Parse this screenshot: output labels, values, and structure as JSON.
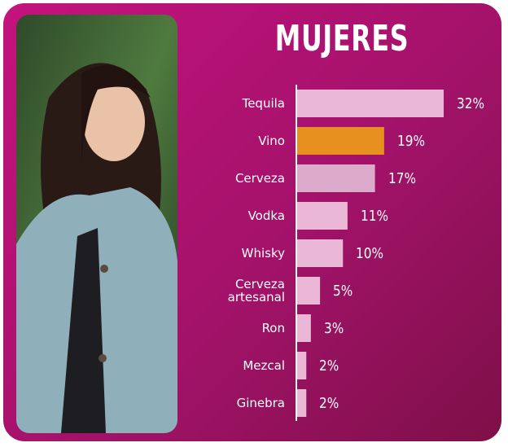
{
  "chart_data": {
    "type": "bar",
    "orientation": "horizontal",
    "title": "MUJERES",
    "categories": [
      "Tequila",
      "Vino",
      "Cerveza",
      "Vodka",
      "Whisky",
      "Cerveza artesanal",
      "Ron",
      "Mezcal",
      "Ginebra"
    ],
    "values": [
      32,
      19,
      17,
      11,
      10,
      5,
      3,
      2,
      2
    ],
    "value_labels": [
      "32%",
      "19%",
      "17%",
      "11%",
      "10%",
      "5%",
      "3%",
      "2%",
      "2%"
    ],
    "colors": [
      "#eab8d6",
      "#e8901f",
      "#dcaacb",
      "#eab8d6",
      "#eab8d6",
      "#eab8d6",
      "#eab8d6",
      "#eab8d6",
      "#eab8d6"
    ]
  }
}
